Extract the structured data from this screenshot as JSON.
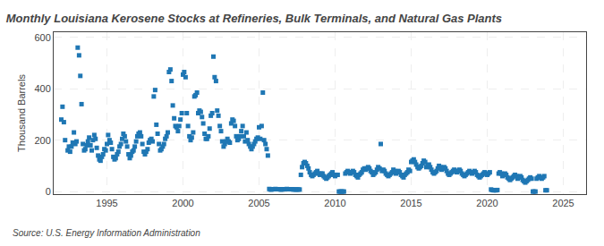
{
  "chart_data": {
    "type": "scatter",
    "title": "Monthly Louisiana Kerosene Stocks at Refineries, Bulk Terminals, and Natural Gas Plants",
    "y_label": "Thousand Barrels",
    "annotations": [
      "Source: U.S. Energy Information Administration"
    ],
    "marker": "square",
    "grid": true,
    "xlim": [
      1991.5,
      2026.5
    ],
    "ylim": [
      -10,
      620
    ],
    "xticks": [
      1995,
      2000,
      2005,
      2010,
      2015,
      2020,
      2025
    ],
    "yticks": [
      0,
      200,
      400,
      600
    ],
    "x": [
      1992.0,
      1992.08,
      1992.17,
      1992.25,
      1992.42,
      1992.5,
      1992.58,
      1992.67,
      1992.75,
      1992.83,
      1992.92,
      1993.0,
      1993.08,
      1993.17,
      1993.25,
      1993.33,
      1993.42,
      1993.5,
      1993.58,
      1993.67,
      1993.75,
      1993.83,
      1993.92,
      1994.0,
      1994.08,
      1994.17,
      1994.25,
      1994.33,
      1994.42,
      1994.5,
      1994.58,
      1994.67,
      1994.75,
      1994.83,
      1994.92,
      1995.0,
      1995.08,
      1995.17,
      1995.25,
      1995.33,
      1995.42,
      1995.5,
      1995.58,
      1995.67,
      1995.75,
      1995.83,
      1995.92,
      1996.0,
      1996.08,
      1996.17,
      1996.25,
      1996.33,
      1996.42,
      1996.5,
      1996.58,
      1996.67,
      1996.75,
      1996.83,
      1996.92,
      1997.0,
      1997.08,
      1997.17,
      1997.25,
      1997.33,
      1997.42,
      1997.5,
      1997.58,
      1997.67,
      1997.75,
      1997.83,
      1997.92,
      1998.0,
      1998.08,
      1998.17,
      1998.25,
      1998.33,
      1998.42,
      1998.5,
      1998.58,
      1998.67,
      1998.75,
      1998.83,
      1998.92,
      1999.0,
      1999.08,
      1999.17,
      1999.25,
      1999.33,
      1999.42,
      1999.5,
      1999.58,
      1999.67,
      1999.75,
      1999.83,
      1999.92,
      2000.0,
      2000.08,
      2000.17,
      2000.25,
      2000.33,
      2000.42,
      2000.5,
      2000.58,
      2000.67,
      2000.75,
      2000.83,
      2000.92,
      2001.0,
      2001.08,
      2001.17,
      2001.25,
      2001.33,
      2001.42,
      2001.5,
      2001.58,
      2001.67,
      2001.75,
      2001.83,
      2001.92,
      2002.0,
      2002.08,
      2002.17,
      2002.25,
      2002.33,
      2002.42,
      2002.5,
      2002.58,
      2002.67,
      2002.75,
      2002.83,
      2002.92,
      2003.0,
      2003.08,
      2003.17,
      2003.25,
      2003.33,
      2003.42,
      2003.5,
      2003.58,
      2003.67,
      2003.75,
      2003.83,
      2003.92,
      2004.0,
      2004.08,
      2004.17,
      2004.25,
      2004.33,
      2004.42,
      2004.5,
      2004.58,
      2004.67,
      2004.75,
      2004.83,
      2004.92,
      2005.0,
      2005.08,
      2005.17,
      2005.25,
      2005.33,
      2005.42,
      2005.5,
      2005.58,
      2005.67,
      2005.75,
      2005.83,
      2005.92,
      2006.0,
      2006.08,
      2006.17,
      2006.25,
      2006.33,
      2006.42,
      2006.5,
      2006.58,
      2006.67,
      2006.75,
      2006.83,
      2006.92,
      2007.0,
      2007.08,
      2007.17,
      2007.25,
      2007.33,
      2007.42,
      2007.5,
      2007.58,
      2007.67,
      2007.75,
      2007.83,
      2007.92,
      2008.0,
      2008.08,
      2008.17,
      2008.25,
      2008.33,
      2008.42,
      2008.5,
      2008.58,
      2008.67,
      2008.75,
      2008.83,
      2008.92,
      2009.0,
      2009.08,
      2009.17,
      2009.25,
      2009.33,
      2009.42,
      2009.5,
      2009.58,
      2009.67,
      2009.75,
      2009.83,
      2009.92,
      2010.0,
      2010.08,
      2010.17,
      2010.25,
      2010.33,
      2010.42,
      2010.5,
      2010.58,
      2010.67,
      2010.75,
      2010.83,
      2010.92,
      2011.0,
      2011.08,
      2011.17,
      2011.25,
      2011.33,
      2011.42,
      2011.5,
      2011.58,
      2011.67,
      2011.75,
      2011.83,
      2011.92,
      2012.0,
      2012.08,
      2012.17,
      2012.25,
      2012.33,
      2012.42,
      2012.5,
      2012.58,
      2012.67,
      2012.75,
      2012.83,
      2012.92,
      2013.0,
      2013.08,
      2013.17,
      2013.25,
      2013.33,
      2013.42,
      2013.5,
      2013.58,
      2013.67,
      2013.75,
      2013.83,
      2013.92,
      2014.0,
      2014.08,
      2014.17,
      2014.25,
      2014.33,
      2014.42,
      2014.5,
      2014.58,
      2014.67,
      2014.75,
      2014.83,
      2014.92,
      2015.0,
      2015.08,
      2015.17,
      2015.25,
      2015.33,
      2015.42,
      2015.5,
      2015.58,
      2015.67,
      2015.75,
      2015.83,
      2015.92,
      2016.0,
      2016.08,
      2016.17,
      2016.25,
      2016.33,
      2016.42,
      2016.5,
      2016.58,
      2016.67,
      2016.75,
      2016.83,
      2016.92,
      2017.0,
      2017.08,
      2017.17,
      2017.25,
      2017.33,
      2017.42,
      2017.5,
      2017.58,
      2017.67,
      2017.75,
      2017.83,
      2017.92,
      2018.0,
      2018.08,
      2018.17,
      2018.25,
      2018.33,
      2018.42,
      2018.5,
      2018.58,
      2018.67,
      2018.75,
      2018.83,
      2018.92,
      2019.0,
      2019.08,
      2019.17,
      2019.25,
      2019.33,
      2019.42,
      2019.5,
      2019.58,
      2019.67,
      2019.75,
      2019.83,
      2019.92,
      2020.0,
      2020.08,
      2020.17,
      2020.25,
      2020.33,
      2020.42,
      2020.5,
      2020.58,
      2020.67,
      2020.75,
      2020.83,
      2020.92,
      2021.0,
      2021.08,
      2021.17,
      2021.25,
      2021.33,
      2021.42,
      2021.5,
      2021.58,
      2021.67,
      2021.75,
      2021.83,
      2021.92,
      2022.0,
      2022.08,
      2022.17,
      2022.25,
      2022.33,
      2022.42,
      2022.5,
      2022.58,
      2022.67,
      2022.75,
      2022.83,
      2022.92,
      2023.0,
      2023.08,
      2023.17,
      2023.25,
      2023.33,
      2023.42,
      2023.5,
      2023.58,
      2023.67,
      2023.75,
      2023.83,
      2023.92
    ],
    "values": [
      280,
      330,
      270,
      200,
      160,
      175,
      155,
      175,
      190,
      230,
      185,
      195,
      560,
      530,
      450,
      340,
      185,
      160,
      165,
      180,
      195,
      210,
      180,
      160,
      200,
      220,
      205,
      170,
      140,
      125,
      120,
      135,
      145,
      165,
      160,
      185,
      220,
      200,
      190,
      165,
      135,
      125,
      130,
      145,
      155,
      175,
      185,
      205,
      225,
      215,
      195,
      175,
      145,
      130,
      140,
      155,
      160,
      175,
      195,
      215,
      225,
      230,
      215,
      185,
      155,
      145,
      155,
      165,
      190,
      200,
      205,
      195,
      370,
      395,
      260,
      225,
      185,
      160,
      165,
      175,
      185,
      205,
      215,
      230,
      465,
      475,
      430,
      335,
      285,
      255,
      250,
      235,
      255,
      280,
      305,
      455,
      465,
      445,
      305,
      255,
      215,
      200,
      210,
      230,
      370,
      375,
      385,
      305,
      315,
      310,
      290,
      265,
      225,
      205,
      205,
      215,
      245,
      295,
      305,
      525,
      445,
      430,
      315,
      295,
      255,
      235,
      195,
      175,
      185,
      195,
      205,
      195,
      190,
      265,
      280,
      275,
      255,
      215,
      200,
      205,
      215,
      235,
      255,
      215,
      195,
      230,
      200,
      185,
      175,
      165,
      175,
      185,
      195,
      205,
      210,
      250,
      205,
      255,
      385,
      200,
      185,
      165,
      140,
      10,
      8,
      8,
      9,
      9,
      10,
      9,
      9,
      9,
      8,
      8,
      9,
      9,
      9,
      10,
      9,
      9,
      9,
      9,
      8,
      8,
      8,
      8,
      8,
      8,
      65,
      95,
      110,
      115,
      110,
      100,
      90,
      75,
      65,
      60,
      65,
      70,
      75,
      80,
      70,
      65,
      70,
      70,
      60,
      55,
      50,
      55,
      60,
      65,
      70,
      75,
      65,
      60,
      65,
      65,
      0,
      0,
      0,
      0,
      0,
      70,
      75,
      80,
      75,
      70,
      75,
      80,
      75,
      65,
      60,
      55,
      65,
      70,
      75,
      85,
      90,
      85,
      90,
      95,
      90,
      80,
      75,
      65,
      70,
      75,
      85,
      95,
      90,
      185,
      80,
      85,
      80,
      70,
      65,
      60,
      65,
      70,
      75,
      85,
      80,
      70,
      75,
      80,
      75,
      65,
      60,
      55,
      65,
      70,
      75,
      85,
      80,
      115,
      120,
      125,
      115,
      105,
      95,
      90,
      95,
      100,
      110,
      120,
      115,
      95,
      100,
      105,
      95,
      85,
      75,
      70,
      75,
      80,
      90,
      100,
      95,
      85,
      90,
      95,
      90,
      80,
      70,
      65,
      70,
      75,
      80,
      85,
      80,
      75,
      80,
      85,
      80,
      70,
      65,
      60,
      65,
      70,
      75,
      80,
      75,
      70,
      75,
      80,
      75,
      65,
      60,
      55,
      60,
      65,
      70,
      75,
      70,
      65,
      70,
      75,
      8,
      6,
      5,
      5,
      5,
      6,
      70,
      75,
      70,
      60,
      65,
      70,
      65,
      55,
      50,
      45,
      50,
      55,
      60,
      65,
      60,
      50,
      55,
      60,
      55,
      45,
      40,
      35,
      40,
      45,
      50,
      55,
      50,
      0,
      0,
      0,
      50,
      55,
      60,
      55,
      50,
      55,
      60,
      5,
      5
    ]
  }
}
